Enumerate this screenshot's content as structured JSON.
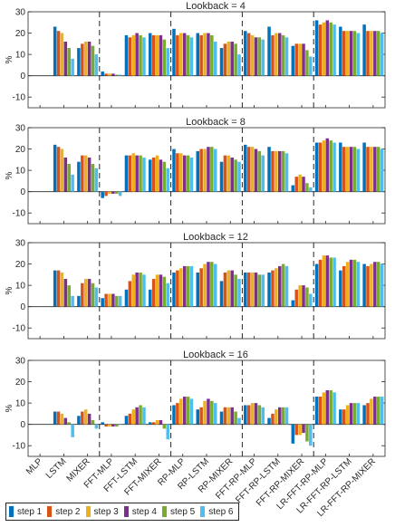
{
  "chart_data": {
    "type": "bar",
    "categories": [
      "MLP",
      "LSTM",
      "MIXER",
      "FFT-MLP",
      "FFT-LSTM",
      "FFT-MIXER",
      "RP-MLP",
      "RP-LSTM",
      "RP-MIXER",
      "FFT-RP-MLP",
      "FFT-RP-LSTM",
      "FFT-RP-MIXER",
      "LR-FFT-RP-MLP",
      "LR-FFT-RP-LSTM",
      "LR-FFT-RP-MIXER"
    ],
    "series_names": [
      "step 1",
      "step 2",
      "step 3",
      "step 4",
      "step 5",
      "step 6"
    ],
    "colors": [
      "#0072BD",
      "#D95319",
      "#EDB120",
      "#7E2F8E",
      "#77AC30",
      "#4DBEEE"
    ],
    "ylabel": "%",
    "ylim": [
      -15,
      30
    ],
    "yticks": [
      -10,
      0,
      10,
      20,
      30
    ],
    "group_separators_after": [
      2,
      5,
      8,
      11
    ],
    "panels": [
      {
        "title": "Lookback = 4",
        "values": [
          [
            null,
            null,
            null,
            null,
            null,
            null
          ],
          [
            23,
            21,
            20,
            16,
            13,
            8
          ],
          [
            13,
            15,
            16,
            16,
            14,
            10
          ],
          [
            2,
            1,
            1,
            1,
            0.5,
            0.5
          ],
          [
            19,
            18,
            19,
            20,
            19,
            18
          ],
          [
            20,
            19,
            19,
            19,
            17,
            13
          ],
          [
            22,
            19,
            20,
            20,
            19,
            18
          ],
          [
            20,
            19,
            20,
            20,
            19,
            16
          ],
          [
            13,
            15,
            16,
            16,
            15,
            10
          ],
          [
            21,
            20,
            19,
            18,
            18,
            17
          ],
          [
            23,
            19,
            20,
            20,
            19,
            18
          ],
          [
            14,
            15,
            15,
            15,
            12,
            9
          ],
          [
            26,
            24,
            25,
            26,
            25,
            24
          ],
          [
            23,
            21,
            21,
            21,
            21,
            20
          ],
          [
            24,
            21,
            21,
            21,
            21,
            20
          ]
        ]
      },
      {
        "title": "Lookback = 8",
        "values": [
          [
            null,
            null,
            null,
            null,
            null,
            null
          ],
          [
            22,
            21,
            20,
            16,
            13,
            8
          ],
          [
            14,
            17,
            17,
            16,
            13,
            11
          ],
          [
            -3,
            -2,
            -1,
            -1,
            -1,
            -2
          ],
          [
            17,
            17,
            18,
            17,
            17,
            16
          ],
          [
            15,
            16,
            17,
            15,
            14,
            11
          ],
          [
            20,
            18,
            18,
            17,
            17,
            16
          ],
          [
            19,
            20,
            20,
            21,
            21,
            20
          ],
          [
            14,
            17,
            17,
            16,
            15,
            14
          ],
          [
            22,
            21,
            21,
            20,
            19,
            17
          ],
          [
            21,
            19,
            19,
            19,
            19,
            18
          ],
          [
            3,
            7,
            8,
            7,
            4,
            2
          ],
          [
            23,
            23,
            24,
            25,
            24,
            23
          ],
          [
            23,
            21,
            21,
            21,
            21,
            20
          ],
          [
            23,
            21,
            21,
            21,
            21,
            20
          ]
        ]
      },
      {
        "title": "Lookback = 12",
        "values": [
          [
            null,
            null,
            null,
            null,
            null,
            null
          ],
          [
            17,
            17,
            16,
            13,
            10,
            5
          ],
          [
            5,
            11,
            13,
            13,
            11,
            9
          ],
          [
            4,
            6,
            6,
            6,
            5,
            5
          ],
          [
            8,
            12,
            15,
            16,
            16,
            15
          ],
          [
            8,
            13,
            15,
            15,
            14,
            11
          ],
          [
            16,
            17,
            18,
            19,
            19,
            19
          ],
          [
            16,
            18,
            20,
            21,
            21,
            20
          ],
          [
            12,
            16,
            17,
            17,
            15,
            13
          ],
          [
            16,
            16,
            16,
            16,
            15,
            15
          ],
          [
            16,
            17,
            18,
            19,
            20,
            19
          ],
          [
            3,
            8,
            10,
            10,
            9,
            6
          ],
          [
            20,
            22,
            24,
            24,
            23,
            23
          ],
          [
            17,
            19,
            21,
            22,
            22,
            21
          ],
          [
            20,
            19,
            20,
            21,
            21,
            20
          ]
        ]
      },
      {
        "title": "Lookback = 16",
        "values": [
          [
            null,
            null,
            null,
            null,
            null,
            null
          ],
          [
            6,
            6,
            5,
            3,
            1,
            -6
          ],
          [
            4,
            6,
            7,
            5,
            2,
            -2
          ],
          [
            1,
            -1,
            -1,
            -1,
            -1,
            0
          ],
          [
            4,
            5,
            7,
            8,
            9,
            8
          ],
          [
            1,
            1,
            2,
            2,
            -2,
            -7
          ],
          [
            9,
            10,
            12,
            13,
            13,
            12
          ],
          [
            7,
            8,
            11,
            12,
            11,
            10
          ],
          [
            6,
            8,
            8,
            8,
            6,
            3
          ],
          [
            9,
            9,
            10,
            10,
            9,
            8
          ],
          [
            3,
            5,
            7,
            8,
            8,
            8
          ],
          [
            -9,
            -5,
            -5,
            -4,
            -8,
            -10
          ],
          [
            13,
            13,
            15,
            16,
            16,
            15
          ],
          [
            7,
            7,
            9,
            10,
            10,
            10
          ],
          [
            9,
            10,
            12,
            13,
            13,
            13
          ]
        ]
      }
    ]
  }
}
